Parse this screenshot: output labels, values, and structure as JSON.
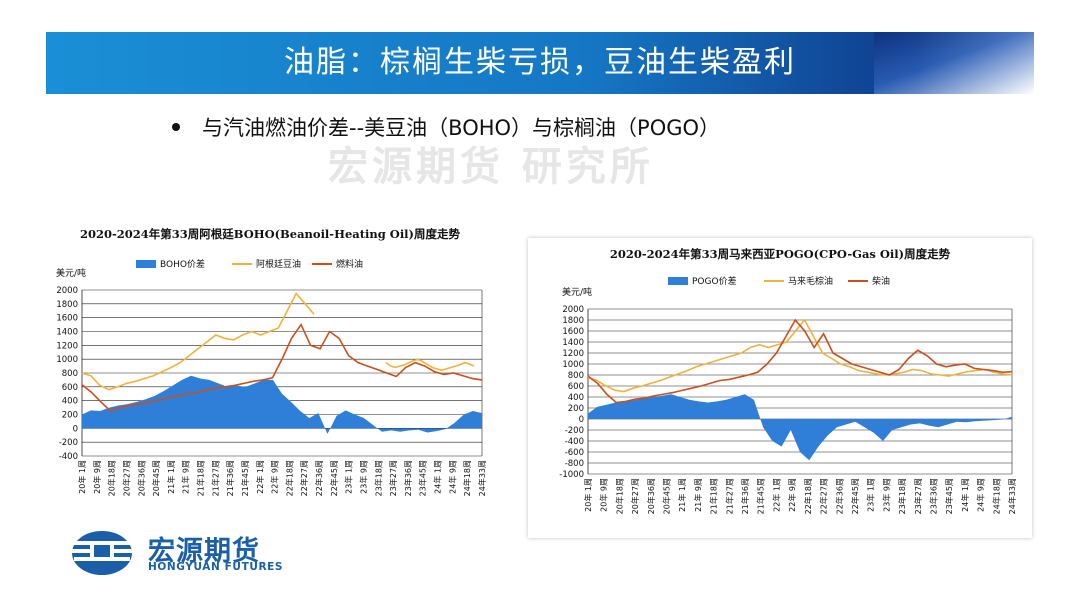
{
  "slide": {
    "title": "油脂：棕榈生柴亏损，豆油生柴盈利",
    "bullet": "与汽油燃油价差--美豆油（BOHO）与棕榈油（POGO）",
    "watermark": "宏源期货 研究所"
  },
  "logo": {
    "name": "宏源期货",
    "sub": "HONGYUAN FUTURES"
  },
  "colors": {
    "spread": "#2f7fd9",
    "soy": "#f0b23c",
    "fuel": "#c8501e",
    "banner": "#1577c4"
  },
  "chart_data": [
    {
      "type": "area+line",
      "title": "2020-2024年第33周阿根廷BOHO(Beanoil-Heating Oil)周度走势",
      "ylabel": "美元/吨",
      "ylim": [
        -400,
        2000
      ],
      "yticks": [
        -400,
        -200,
        0,
        200,
        400,
        600,
        800,
        1000,
        1200,
        1400,
        1600,
        1800,
        2000
      ],
      "xticks": [
        "20年 1周",
        "20年 9周",
        "20年18周",
        "20年27周",
        "20年36周",
        "20年45周",
        "21年 1周",
        "21年 9周",
        "21年18周",
        "21年27周",
        "21年36周",
        "21年45周",
        "22年 1周",
        "22年 9周",
        "22年18周",
        "22年27周",
        "22年36周",
        "22年45周",
        "23年 1周",
        "23年 9周",
        "23年18周",
        "23年27周",
        "23年36周",
        "23年45周",
        "24年 1周",
        "24年 9周",
        "24年18周",
        "24年33周"
      ],
      "legend": [
        "BOHO价差",
        "阿根廷豆油",
        "燃料油"
      ],
      "series": [
        {
          "name": "阿根廷豆油",
          "values": [
            800,
            760,
            620,
            560,
            600,
            650,
            680,
            720,
            760,
            820,
            880,
            950,
            1050,
            1150,
            1250,
            1350,
            1300,
            1280,
            1350,
            1400,
            1350,
            1400,
            1450,
            1700,
            1950,
            1800,
            1650,
            null,
            null,
            null,
            null,
            null,
            null,
            null,
            null,
            null,
            null,
            null,
            null,
            null,
            null,
            null,
            null,
            null,
            null,
            null,
            null,
            null,
            null,
            null,
            null,
            null,
            null,
            null,
            null,
            null
          ],
          "note": "first segment 20W1-22W27"
        },
        {
          "name": "燃料油",
          "values": [
            630,
            520,
            380,
            250,
            300,
            330,
            350,
            380,
            410,
            440,
            470,
            500,
            520,
            550,
            580,
            600,
            620,
            650,
            680,
            700,
            730,
            1000,
            1300,
            1500,
            1200,
            1150,
            1400,
            1300,
            1050,
            950,
            900,
            850,
            800,
            750,
            880,
            950,
            900,
            820,
            780,
            800,
            760,
            720,
            700
          ]
        },
        {
          "name": "BOHO价差",
          "values": [
            200,
            260,
            250,
            300,
            330,
            350,
            380,
            420,
            470,
            540,
            620,
            700,
            760,
            720,
            700,
            650,
            600,
            620,
            600,
            650,
            700,
            700,
            500,
            380,
            250,
            150,
            220,
            -80,
            180,
            260,
            200,
            150,
            50,
            -50,
            -30,
            -50,
            -30,
            -20,
            -60,
            -40,
            -10,
            80,
            200,
            250,
            220
          ]
        }
      ],
      "soy_late": [
        950,
        900,
        880,
        900,
        920,
        950,
        980,
        1000,
        960,
        920,
        880,
        860,
        840,
        860,
        880,
        900,
        920,
        950,
        930,
        900
      ]
    },
    {
      "type": "area+line",
      "title": "2020-2024年第33周马来西亚POGO(CPO-Gas Oil)周度走势",
      "ylabel": "美元/吨",
      "ylim": [
        -1000,
        2000
      ],
      "yticks": [
        -1000,
        -800,
        -600,
        -400,
        -200,
        0,
        200,
        400,
        600,
        800,
        1000,
        1200,
        1400,
        1600,
        1800,
        2000
      ],
      "xticks": [
        "20年 1周",
        "20年 9周",
        "20年18周",
        "20年27周",
        "20年36周",
        "20年45周",
        "21年 1周",
        "21年 9周",
        "21年18周",
        "21年27周",
        "21年36周",
        "21年45周",
        "22年 1周",
        "22年 9周",
        "22年18周",
        "22年27周",
        "22年36周",
        "22年45周",
        "23年 1周",
        "23年 9周",
        "23年18周",
        "23年27周",
        "23年36周",
        "23年45周",
        "24年 1周",
        "24年 9周",
        "24年18周",
        "24年33周"
      ],
      "legend": [
        "POGO价差",
        "马来毛棕油",
        "柴油"
      ],
      "series": [
        {
          "name": "马来毛棕油",
          "values": [
            750,
            700,
            600,
            520,
            500,
            560,
            600,
            650,
            700,
            760,
            820,
            880,
            950,
            1000,
            1050,
            1100,
            1150,
            1200,
            1300,
            1350,
            1300,
            1350,
            1400,
            1600,
            1800,
            1500,
            1200,
            1100,
            1000,
            950,
            880,
            850,
            820,
            800,
            820,
            850,
            900,
            880,
            820,
            800,
            780,
            820,
            860,
            880,
            900,
            850,
            820,
            800
          ]
        },
        {
          "name": "柴油",
          "values": [
            780,
            650,
            450,
            300,
            320,
            360,
            380,
            420,
            450,
            480,
            520,
            560,
            600,
            650,
            700,
            720,
            760,
            800,
            850,
            1000,
            1200,
            1500,
            1800,
            1600,
            1300,
            1550,
            1200,
            1100,
            1000,
            950,
            900,
            850,
            800,
            900,
            1100,
            1250,
            1150,
            1000,
            950,
            980,
            1000,
            920,
            900,
            880,
            850,
            860
          ]
        },
        {
          "name": "POGO价差",
          "values": [
            100,
            220,
            260,
            300,
            320,
            340,
            380,
            400,
            420,
            450,
            400,
            350,
            320,
            300,
            320,
            350,
            400,
            450,
            350,
            -150,
            -400,
            -500,
            -200,
            -600,
            -750,
            -500,
            -300,
            -150,
            -100,
            -50,
            -150,
            -250,
            -400,
            -200,
            -150,
            -100,
            -80,
            -120,
            -150,
            -100,
            -50,
            -60,
            -40,
            -30,
            -20,
            -10,
            40
          ]
        }
      ]
    }
  ]
}
